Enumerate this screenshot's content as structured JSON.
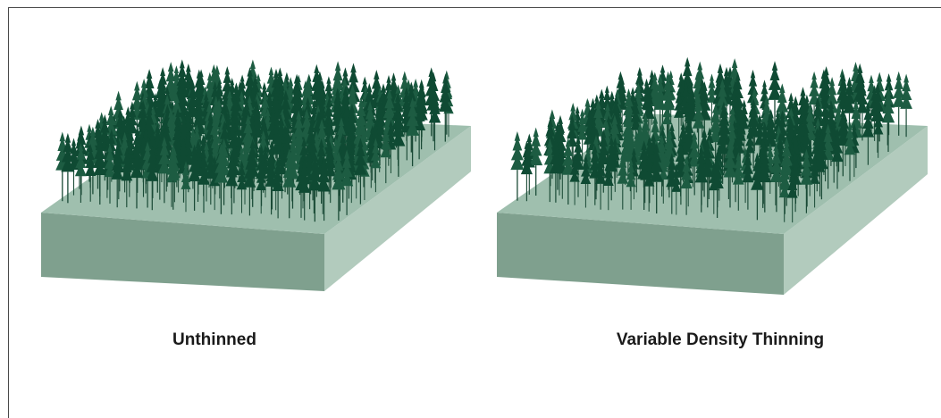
{
  "panels": [
    {
      "id": "unthinned",
      "label": "Unthinned",
      "tree_pattern": "uniform-dense"
    },
    {
      "id": "vdt",
      "label": "Variable Density Thinning",
      "tree_pattern": "clumps-and-gaps"
    }
  ],
  "colors": {
    "frame": "#4a4a4a",
    "block_top": "#9fbfae",
    "block_front": "#7fa08e",
    "block_side": "#b2cbbd",
    "tree_dark": "#0f4a33",
    "tree_mid": "#1d5c42",
    "trunk": "#1a4a36"
  },
  "icons": {
    "tree": "conifer-tree-icon"
  }
}
